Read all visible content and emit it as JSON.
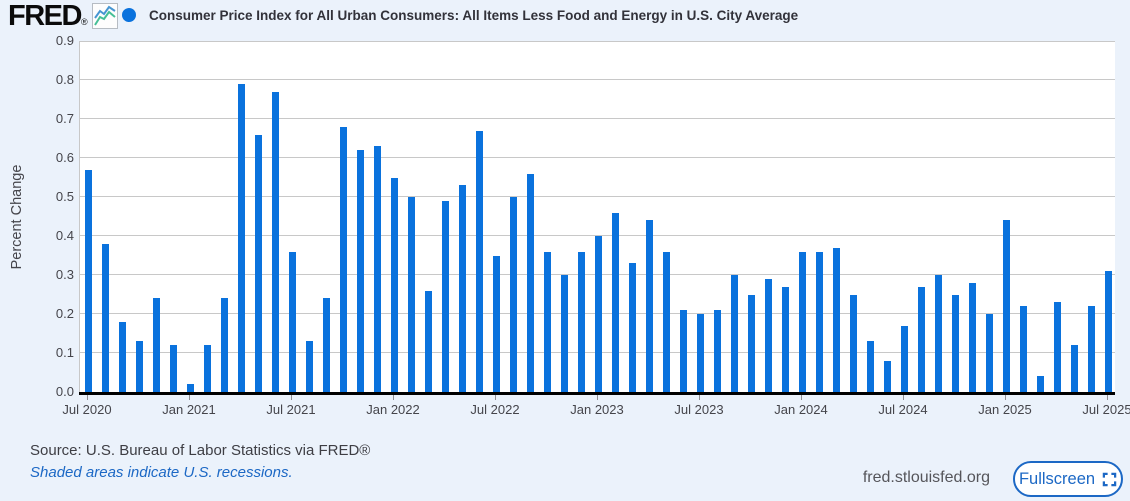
{
  "header": {
    "logo_text": "FRED",
    "logo_reg": "®",
    "title": "Consumer Price Index for All Urban Consumers: All Items Less Food and Energy in U.S. City Average"
  },
  "footer": {
    "source_line": "Source: U.S. Bureau of Labor Statistics via FRED®",
    "recession_note": "Shaded areas indicate U.S. recessions.",
    "site_url": "fred.stlouisfed.org",
    "fullscreen_label": "Fullscreen"
  },
  "colors": {
    "bar_blue": "#0a72dd",
    "page_bg": "#ebf2fb",
    "plot_bg": "#ffffff",
    "gridline": "#c8c8c8",
    "link_blue": "#1c68c5"
  },
  "chart_data": {
    "type": "bar",
    "title": "Consumer Price Index for All Urban Consumers: All Items Less Food and Energy in U.S. City Average",
    "ylabel": "Percent Change",
    "ylim": [
      0.0,
      0.9
    ],
    "grid": "horizontal",
    "legend_position": "top-left",
    "y_tick_labels": [
      "0.0",
      "0.1",
      "0.2",
      "0.3",
      "0.4",
      "0.5",
      "0.6",
      "0.7",
      "0.8",
      "0.9"
    ],
    "x_tick_labels": [
      "Jul 2020",
      "Jan 2021",
      "Jul 2021",
      "Jan 2022",
      "Jul 2022",
      "Jan 2023",
      "Jul 2023",
      "Jan 2024",
      "Jul 2024",
      "Jan 2025",
      "Jul 2025"
    ],
    "x_tick_positions": [
      0,
      6,
      12,
      18,
      24,
      30,
      36,
      42,
      48,
      54,
      60
    ],
    "x": [
      "2020-07",
      "2020-08",
      "2020-09",
      "2020-10",
      "2020-11",
      "2020-12",
      "2021-01",
      "2021-02",
      "2021-03",
      "2021-04",
      "2021-05",
      "2021-06",
      "2021-07",
      "2021-08",
      "2021-09",
      "2021-10",
      "2021-11",
      "2021-12",
      "2022-01",
      "2022-02",
      "2022-03",
      "2022-04",
      "2022-05",
      "2022-06",
      "2022-07",
      "2022-08",
      "2022-09",
      "2022-10",
      "2022-11",
      "2022-12",
      "2023-01",
      "2023-02",
      "2023-03",
      "2023-04",
      "2023-05",
      "2023-06",
      "2023-07",
      "2023-08",
      "2023-09",
      "2023-10",
      "2023-11",
      "2023-12",
      "2024-01",
      "2024-02",
      "2024-03",
      "2024-04",
      "2024-05",
      "2024-06",
      "2024-07",
      "2024-08",
      "2024-09",
      "2024-10",
      "2024-11",
      "2024-12",
      "2025-01",
      "2025-02",
      "2025-03",
      "2025-04",
      "2025-05",
      "2025-06",
      "2025-07"
    ],
    "values": [
      0.57,
      0.38,
      0.18,
      0.13,
      0.24,
      0.12,
      0.02,
      0.12,
      0.24,
      0.79,
      0.66,
      0.77,
      0.36,
      0.13,
      0.24,
      0.68,
      0.62,
      0.63,
      0.55,
      0.5,
      0.26,
      0.49,
      0.53,
      0.67,
      0.35,
      0.5,
      0.56,
      0.36,
      0.3,
      0.36,
      0.4,
      0.46,
      0.33,
      0.44,
      0.36,
      0.21,
      0.2,
      0.21,
      0.3,
      0.25,
      0.29,
      0.27,
      0.36,
      0.36,
      0.37,
      0.25,
      0.13,
      0.08,
      0.17,
      0.27,
      0.3,
      0.25,
      0.28,
      0.2,
      0.44,
      0.22,
      0.04,
      0.23,
      0.12,
      0.22,
      0.31
    ]
  }
}
